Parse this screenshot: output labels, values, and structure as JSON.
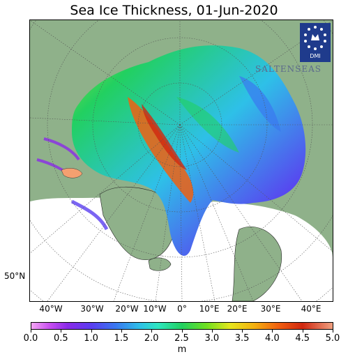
{
  "title": "Sea Ice Thickness, 01-Jun-2020",
  "logo": {
    "text": "DMI",
    "icon": "crown-stars-icon"
  },
  "watermark": {
    "text": "SALTENSEAS"
  },
  "map": {
    "projection": "polar-stereographic",
    "lat_labels": [
      "50°N"
    ],
    "lon_labels": [
      "40°W",
      "30°W",
      "20°W",
      "10°W",
      "0°",
      "10°E",
      "20°E",
      "30°E",
      "40°E"
    ],
    "colors": {
      "land": "#8fb18a",
      "ocean": "#ffffff",
      "graticule": "#555555"
    }
  },
  "colorbar": {
    "unit": "m",
    "min": 0.0,
    "max": 5.0,
    "ticks": [
      "0.0",
      "0.5",
      "1.0",
      "1.5",
      "2.0",
      "2.5",
      "3.0",
      "3.5",
      "4.0",
      "4.5",
      "5.0"
    ]
  }
}
